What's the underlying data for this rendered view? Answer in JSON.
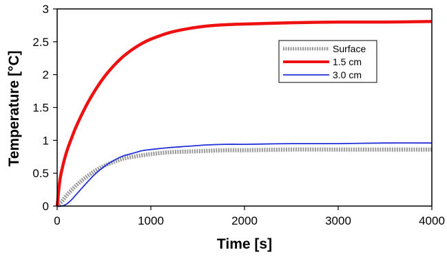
{
  "chart_data": {
    "type": "line",
    "title": "",
    "xlabel": "Time [s]",
    "ylabel": "Temperature [°C]",
    "xlim": [
      0,
      4000
    ],
    "ylim": [
      0,
      3
    ],
    "xticks": [
      "0",
      "1000",
      "2000",
      "3000",
      "4000"
    ],
    "yticks": [
      "0",
      "0.5",
      "1",
      "1.5",
      "2",
      "2.5",
      "3"
    ],
    "grid": false,
    "legend_position": "upper-right",
    "series": [
      {
        "name": "Surface",
        "color": "#999999",
        "style": "thick-dashed",
        "x": [
          0,
          50,
          100,
          200,
          300,
          400,
          500,
          600,
          700,
          800,
          900,
          1000,
          1200,
          1400,
          1600,
          1800,
          2000,
          2500,
          3000,
          3500,
          4000
        ],
        "y": [
          0,
          0.07,
          0.16,
          0.31,
          0.43,
          0.53,
          0.61,
          0.67,
          0.72,
          0.75,
          0.77,
          0.79,
          0.82,
          0.83,
          0.84,
          0.85,
          0.85,
          0.86,
          0.86,
          0.86,
          0.86
        ]
      },
      {
        "name": "1.5 cm",
        "color": "#ee1111",
        "style": "thick",
        "x": [
          0,
          25,
          50,
          100,
          150,
          200,
          300,
          400,
          500,
          600,
          700,
          800,
          900,
          1000,
          1200,
          1400,
          1600,
          1800,
          2000,
          2500,
          3000,
          3500,
          4000
        ],
        "y": [
          0,
          0.35,
          0.55,
          0.82,
          1.02,
          1.2,
          1.5,
          1.75,
          1.96,
          2.13,
          2.27,
          2.38,
          2.47,
          2.54,
          2.64,
          2.7,
          2.74,
          2.76,
          2.77,
          2.79,
          2.8,
          2.8,
          2.81
        ]
      },
      {
        "name": "3.0 cm",
        "color": "#1f2fd6",
        "style": "thin",
        "x": [
          0,
          50,
          100,
          150,
          200,
          300,
          400,
          500,
          600,
          700,
          800,
          900,
          1000,
          1200,
          1400,
          1600,
          1800,
          2000,
          2500,
          3000,
          3500,
          4000
        ],
        "y": [
          0,
          0.0,
          0.03,
          0.09,
          0.17,
          0.33,
          0.48,
          0.6,
          0.69,
          0.76,
          0.8,
          0.84,
          0.86,
          0.89,
          0.91,
          0.93,
          0.94,
          0.94,
          0.95,
          0.95,
          0.96,
          0.96
        ]
      }
    ]
  }
}
